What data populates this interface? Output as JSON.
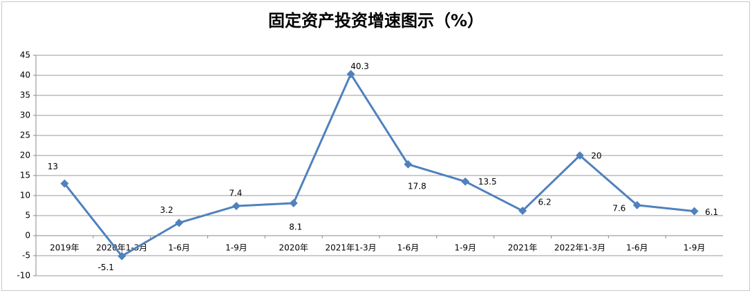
{
  "chart_data": {
    "type": "line",
    "title": "固定资产投资增速图示（%）",
    "categories": [
      "2019年",
      "2020年1-3月",
      "1-6月",
      "1-9月",
      "2020年",
      "2021年1-3月",
      "1-6月",
      "1-9月",
      "2021年",
      "2022年1-3月",
      "1-6月",
      "1-9月"
    ],
    "values": [
      13,
      -5.1,
      3.2,
      7.4,
      8.1,
      40.3,
      17.8,
      13.5,
      6.2,
      20,
      7.6,
      6.1
    ],
    "color": "#4f81bd",
    "ylim": [
      -10,
      45
    ],
    "yticks": [
      -10,
      -5,
      0,
      5,
      10,
      15,
      20,
      25,
      30,
      35,
      40,
      45
    ],
    "grid": true
  }
}
